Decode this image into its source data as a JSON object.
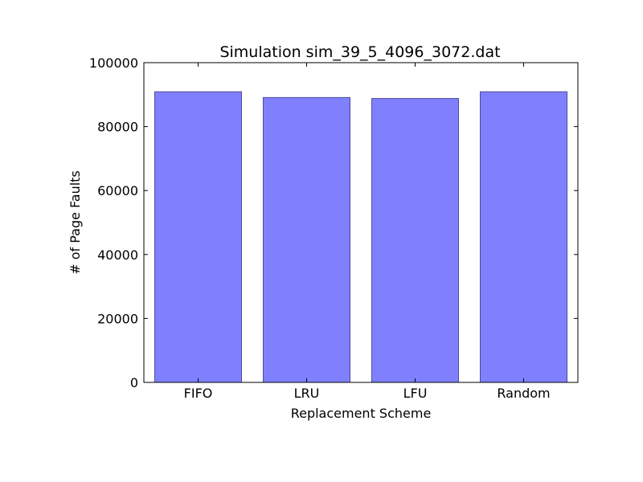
{
  "chart_data": {
    "type": "bar",
    "title": "Simulation sim_39_5_4096_3072.dat",
    "xlabel": "Replacement Scheme",
    "ylabel": "# of Page Faults",
    "categories": [
      "FIFO",
      "LRU",
      "LFU",
      "Random"
    ],
    "values": [
      90900,
      89100,
      88800,
      90900
    ],
    "ylim": [
      0,
      100000
    ],
    "yticks": [
      0,
      20000,
      40000,
      60000,
      80000,
      100000
    ],
    "grid": false,
    "colors": {
      "bar_fill": "#8080ff",
      "bar_edge": "#4d4d99"
    }
  }
}
